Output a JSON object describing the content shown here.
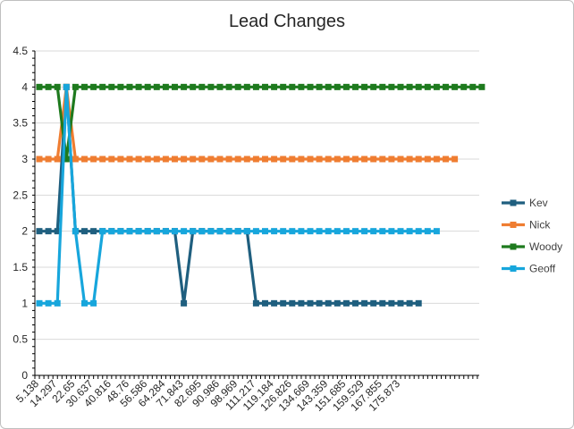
{
  "chart_data": {
    "type": "line",
    "title": "Lead Changes",
    "xlabel": "",
    "ylabel": "",
    "ylim": [
      0,
      4.5
    ],
    "y_ticks": [
      "0",
      "0.5",
      "1",
      "1.5",
      "2",
      "2.5",
      "3",
      "3.5",
      "4",
      "4.5"
    ],
    "x_tick_labels": [
      "5.138",
      "14.297",
      "22.65",
      "30.637",
      "40.816",
      "48.76",
      "56.586",
      "64.284",
      "71.843",
      "82.695",
      "90.986",
      "98.969",
      "111.217",
      "119.184",
      "126.826",
      "134.669",
      "143.359",
      "151.685",
      "159.529",
      "167.855",
      "175.873"
    ],
    "grid": "horizontal",
    "legend_position": "right",
    "series": [
      {
        "name": "Kev",
        "color": "#1f5f7f",
        "values": [
          2,
          2,
          2,
          4,
          2,
          2,
          2,
          2,
          2,
          2,
          2,
          2,
          2,
          2,
          2,
          2,
          1,
          2,
          2,
          2,
          2,
          2,
          2,
          2,
          1,
          1,
          1,
          1,
          1,
          1,
          1,
          1,
          1,
          1,
          1,
          1,
          1,
          1,
          1,
          1,
          1,
          1,
          1
        ]
      },
      {
        "name": "Nick",
        "color": "#ef7d31",
        "values": [
          3,
          3,
          3,
          4,
          3,
          3,
          3,
          3,
          3,
          3,
          3,
          3,
          3,
          3,
          3,
          3,
          3,
          3,
          3,
          3,
          3,
          3,
          3,
          3,
          3,
          3,
          3,
          3,
          3,
          3,
          3,
          3,
          3,
          3,
          3,
          3,
          3,
          3,
          3,
          3,
          3,
          3,
          3,
          3,
          3,
          3,
          3
        ]
      },
      {
        "name": "Woody",
        "color": "#1e7a1e",
        "values": [
          4,
          4,
          4,
          3,
          4,
          4,
          4,
          4,
          4,
          4,
          4,
          4,
          4,
          4,
          4,
          4,
          4,
          4,
          4,
          4,
          4,
          4,
          4,
          4,
          4,
          4,
          4,
          4,
          4,
          4,
          4,
          4,
          4,
          4,
          4,
          4,
          4,
          4,
          4,
          4,
          4,
          4,
          4,
          4,
          4,
          4,
          4,
          4,
          4,
          4
        ]
      },
      {
        "name": "Geoff",
        "color": "#17a6dc",
        "values": [
          1,
          1,
          1,
          4,
          2,
          1,
          1,
          2,
          2,
          2,
          2,
          2,
          2,
          2,
          2,
          2,
          2,
          2,
          2,
          2,
          2,
          2,
          2,
          2,
          2,
          2,
          2,
          2,
          2,
          2,
          2,
          2,
          2,
          2,
          2,
          2,
          2,
          2,
          2,
          2,
          2,
          2,
          2,
          2,
          2
        ]
      }
    ]
  }
}
